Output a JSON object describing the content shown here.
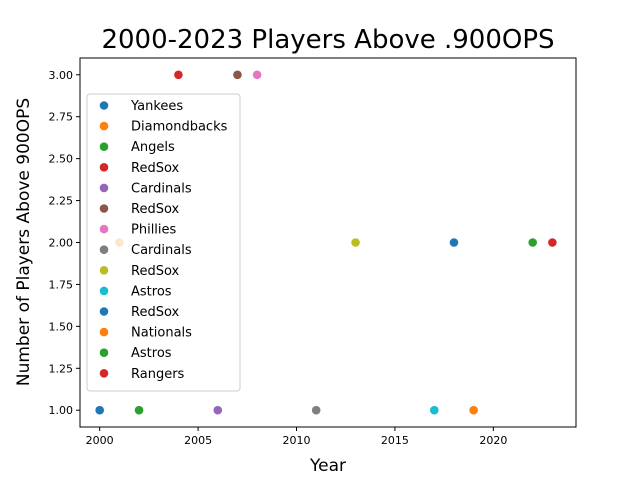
{
  "chart_data": {
    "type": "scatter",
    "title": "2000-2023 Players Above .900OPS",
    "xlabel": "Year",
    "ylabel": "Number of Players Above 900OPS",
    "xlim": [
      1999,
      2024.2
    ],
    "ylim": [
      0.9,
      3.1
    ],
    "xticks": [
      2000,
      2005,
      2010,
      2015,
      2020
    ],
    "xtick_labels": [
      "2000",
      "2005",
      "2010",
      "2015",
      "2020"
    ],
    "yticks": [
      1.0,
      1.25,
      1.5,
      1.75,
      2.0,
      2.25,
      2.5,
      2.75,
      3.0
    ],
    "ytick_labels": [
      "1.00",
      "1.25",
      "1.50",
      "1.75",
      "2.00",
      "2.25",
      "2.50",
      "2.75",
      "3.00"
    ],
    "grid": false,
    "legend_position": "center-left",
    "series": [
      {
        "name": "Yankees",
        "color": "#1f77b4",
        "x": [
          2000
        ],
        "y": [
          1
        ]
      },
      {
        "name": "Diamondbacks",
        "color": "#ff7f0e",
        "x": [
          2001
        ],
        "y": [
          2
        ]
      },
      {
        "name": "Angels",
        "color": "#2ca02c",
        "x": [
          2002
        ],
        "y": [
          1
        ]
      },
      {
        "name": "RedSox",
        "color": "#d62728",
        "x": [
          2004
        ],
        "y": [
          3
        ]
      },
      {
        "name": "Cardinals",
        "color": "#9467bd",
        "x": [
          2006
        ],
        "y": [
          1
        ]
      },
      {
        "name": "RedSox",
        "color": "#8c564b",
        "x": [
          2007
        ],
        "y": [
          3
        ]
      },
      {
        "name": "Phillies",
        "color": "#e377c2",
        "x": [
          2008
        ],
        "y": [
          3
        ]
      },
      {
        "name": "Cardinals",
        "color": "#7f7f7f",
        "x": [
          2011
        ],
        "y": [
          1
        ]
      },
      {
        "name": "RedSox",
        "color": "#bcbd22",
        "x": [
          2013
        ],
        "y": [
          2
        ]
      },
      {
        "name": "Astros",
        "color": "#17becf",
        "x": [
          2017
        ],
        "y": [
          1
        ]
      },
      {
        "name": "RedSox",
        "color": "#1f77b4",
        "x": [
          2018
        ],
        "y": [
          2
        ]
      },
      {
        "name": "Nationals",
        "color": "#ff7f0e",
        "x": [
          2019
        ],
        "y": [
          1
        ]
      },
      {
        "name": "Astros",
        "color": "#2ca02c",
        "x": [
          2022
        ],
        "y": [
          2
        ]
      },
      {
        "name": "Rangers",
        "color": "#d62728",
        "x": [
          2023
        ],
        "y": [
          2
        ]
      }
    ]
  }
}
